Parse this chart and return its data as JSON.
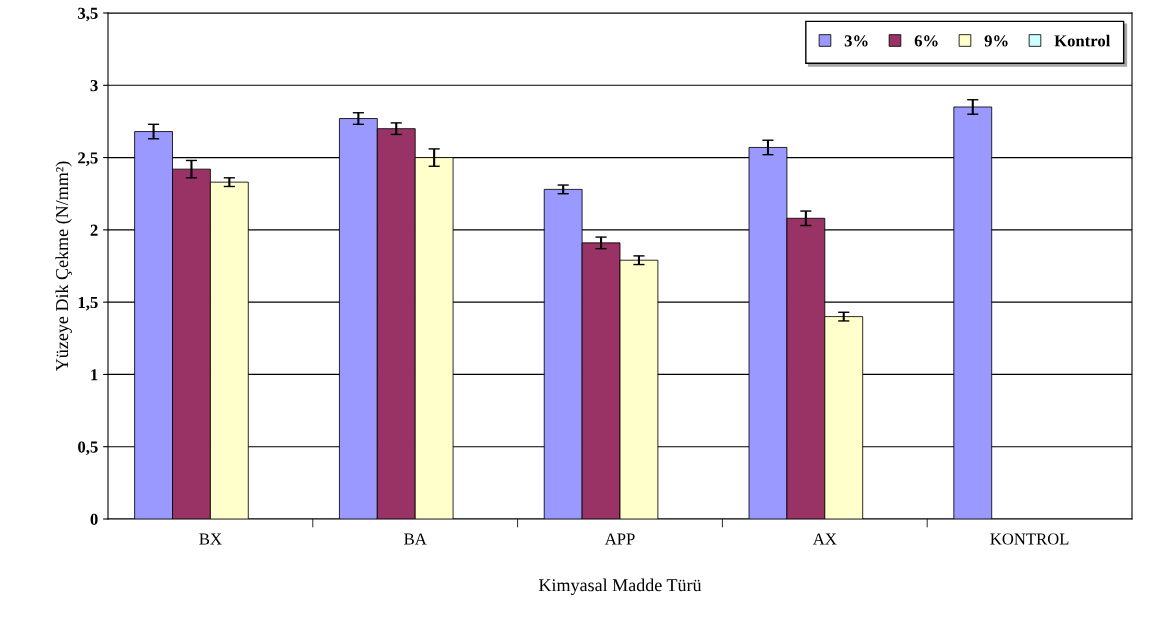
{
  "chart_data": {
    "type": "bar",
    "xlabel": "Kimyasal Madde Türü",
    "ylabel": "Yüzeye Dik Çekme (N/mm²)",
    "categories": [
      "BX",
      "BA",
      "APP",
      "AX",
      "KONTROL"
    ],
    "series": [
      {
        "name": "3%",
        "color": "#9999ff",
        "values": [
          2.68,
          2.77,
          2.28,
          2.57,
          2.85
        ],
        "errors": [
          0.05,
          0.04,
          0.03,
          0.05,
          0.05
        ]
      },
      {
        "name": "6%",
        "color": "#993366",
        "values": [
          2.42,
          2.7,
          1.91,
          2.08,
          null
        ],
        "errors": [
          0.06,
          0.04,
          0.04,
          0.05,
          null
        ]
      },
      {
        "name": "9%",
        "color": "#ffffcc",
        "values": [
          2.33,
          2.5,
          1.79,
          1.4,
          null
        ],
        "errors": [
          0.03,
          0.06,
          0.03,
          0.03,
          null
        ]
      },
      {
        "name": "Kontrol",
        "color": "#ccffff",
        "values": [
          null,
          null,
          null,
          null,
          null
        ]
      }
    ],
    "ylim": [
      0,
      3.5
    ],
    "yticks": [
      {
        "value": 0,
        "label": "0"
      },
      {
        "value": 0.5,
        "label": "0,5"
      },
      {
        "value": 1,
        "label": "1"
      },
      {
        "value": 1.5,
        "label": "1,5"
      },
      {
        "value": 2,
        "label": "2"
      },
      {
        "value": 2.5,
        "label": "2,5"
      },
      {
        "value": 3,
        "label": "3"
      },
      {
        "value": 3.5,
        "label": "3,5"
      }
    ],
    "grid": "y",
    "legend": "top right"
  }
}
